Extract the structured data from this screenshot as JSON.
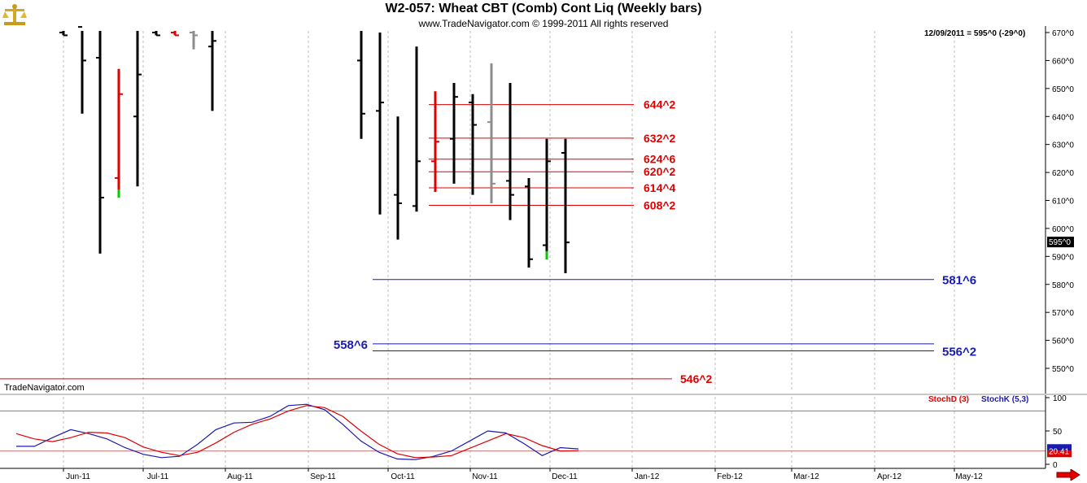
{
  "header": {
    "title": "W2-057:  Wheat CBT (Comb) Cont Liq  (Weekly bars)",
    "subtitle": "www.TradeNavigator.com © 1999-2011 All rights reserved",
    "last_bar_info": "12/09/2011 = 595^0 (-29^0)",
    "watermark": "TradeNavigator.com"
  },
  "icons": {
    "logo": "scales-logo-icon",
    "nav": "scroll-right-arrow-icon"
  },
  "colors": {
    "bar": "#000000",
    "pending_bar": "#8c8c8c",
    "red_bar": "#e00000",
    "green_tick": "#00cc00",
    "resistance": "#e00000",
    "support": "#1a1ab0",
    "stoch_d": "#e00000",
    "stoch_k": "#1a1ab0"
  },
  "chart_data": [
    {
      "type": "ohlc",
      "name": "price",
      "x_labels": [
        "Jun-11",
        "Jul-11",
        "Aug-11",
        "Sep-11",
        "Oct-11",
        "Nov-11",
        "Dec-11",
        "Jan-12",
        "Feb-12",
        "Mar-12",
        "Apr-12",
        "May-12"
      ],
      "y_ticks": [
        "550^0",
        "560^0",
        "570^0",
        "580^0",
        "590^0",
        "600^0",
        "610^0",
        "620^0",
        "630^0",
        "640^0",
        "650^0",
        "660^0",
        "670^0"
      ],
      "ylim": [
        540,
        672
      ],
      "last_price_label": "595^0",
      "bars": [
        {
          "date": "2011-05-27",
          "high": 672,
          "low": 669,
          "open": 670,
          "close": 669
        },
        {
          "date": "2011-06-03",
          "high": 675,
          "low": 641,
          "open": 672,
          "close": 660
        },
        {
          "date": "2011-06-10",
          "high": 675,
          "low": 591,
          "open": 661,
          "close": 611
        },
        {
          "date": "2011-06-17",
          "high": 657,
          "low": 611,
          "open": 618,
          "close": 648,
          "color": "red",
          "low_tick": "green"
        },
        {
          "date": "2011-06-24",
          "high": 672,
          "low": 615,
          "open": 640,
          "close": 655
        },
        {
          "date": "2011-07-01",
          "high": 672,
          "low": 669,
          "open": 670,
          "close": 669
        },
        {
          "date": "2011-07-08",
          "high": 672,
          "low": 669,
          "open": 670,
          "close": 669,
          "color": "red"
        },
        {
          "date": "2011-07-15",
          "high": 672,
          "low": 664,
          "open": 670,
          "close": 669,
          "color": "gray"
        },
        {
          "date": "2011-07-22",
          "high": 672,
          "low": 642,
          "open": 665,
          "close": 667
        },
        {
          "date": "2011-09-16",
          "high": 672,
          "low": 632,
          "open": 660,
          "close": 641
        },
        {
          "date": "2011-09-23",
          "high": 670,
          "low": 605,
          "open": 642,
          "close": 645
        },
        {
          "date": "2011-09-30",
          "high": 640,
          "low": 596,
          "open": 612,
          "close": 609
        },
        {
          "date": "2011-10-07",
          "high": 665,
          "low": 606,
          "open": 608,
          "close": 624
        },
        {
          "date": "2011-10-14",
          "high": 649,
          "low": 613,
          "open": 624,
          "close": 631,
          "color": "red"
        },
        {
          "date": "2011-10-21",
          "high": 652,
          "low": 616,
          "open": 632,
          "close": 647
        },
        {
          "date": "2011-10-28",
          "high": 648,
          "low": 612,
          "open": 645,
          "close": 637
        },
        {
          "date": "2011-11-04",
          "high": 659,
          "low": 609,
          "open": 638,
          "close": 616,
          "color": "gray"
        },
        {
          "date": "2011-11-11",
          "high": 652,
          "low": 603,
          "open": 617,
          "close": 612
        },
        {
          "date": "2011-11-18",
          "high": 618,
          "low": 586,
          "open": 615,
          "close": 589
        },
        {
          "date": "2011-11-25",
          "high": 632,
          "low": 589,
          "open": 594,
          "close": 624,
          "low_tick": "green"
        },
        {
          "date": "2011-12-02",
          "high": 632,
          "low": 584,
          "open": 627,
          "close": 595
        }
      ],
      "resistance_levels": [
        {
          "label": "644^2",
          "value": 644.25
        },
        {
          "label": "632^2",
          "value": 632.25
        },
        {
          "label": "624^6",
          "value": 624.75
        },
        {
          "label": "620^2",
          "value": 620.25
        },
        {
          "label": "614^4",
          "value": 614.5
        },
        {
          "label": "608^2",
          "value": 608.25
        },
        {
          "label": "546^2",
          "value": 546.25
        }
      ],
      "support_levels": [
        {
          "label": "581^6",
          "value": 581.75
        },
        {
          "label": "558^6",
          "value": 558.75
        },
        {
          "label": "556^2",
          "value": 556.25
        }
      ]
    },
    {
      "type": "line",
      "name": "stochastic",
      "y_ticks": [
        "100",
        "50",
        "0"
      ],
      "ylim": [
        0,
        100
      ],
      "reference_lines": [
        80,
        20
      ],
      "last_value_label": "20.41",
      "legend": [
        {
          "label": "StochD (3)",
          "color": "red"
        },
        {
          "label": "StochK (5,3)",
          "color": "blue"
        }
      ],
      "series": [
        {
          "name": "StochK (5,3)",
          "color": "blue",
          "values": [
            [
              0,
              27
            ],
            [
              1,
              27
            ],
            [
              2,
              40
            ],
            [
              3,
              52
            ],
            [
              4,
              46
            ],
            [
              5,
              38
            ],
            [
              6,
              25
            ],
            [
              7,
              15
            ],
            [
              8,
              10
            ],
            [
              9,
              12
            ],
            [
              10,
              30
            ],
            [
              11,
              52
            ],
            [
              12,
              62
            ],
            [
              13,
              63
            ],
            [
              14,
              72
            ],
            [
              15,
              88
            ],
            [
              16,
              90
            ],
            [
              17,
              82
            ],
            [
              18,
              60
            ],
            [
              19,
              35
            ],
            [
              20,
              18
            ],
            [
              21,
              8
            ],
            [
              22,
              7
            ],
            [
              23,
              12
            ],
            [
              24,
              20
            ],
            [
              25,
              35
            ],
            [
              26,
              50
            ],
            [
              27,
              47
            ],
            [
              28,
              31
            ],
            [
              29,
              13
            ],
            [
              30,
              25
            ],
            [
              31,
              23
            ]
          ]
        },
        {
          "name": "StochD (3)",
          "color": "red",
          "values": [
            [
              0,
              46
            ],
            [
              1,
              38
            ],
            [
              2,
              34
            ],
            [
              3,
              40
            ],
            [
              4,
              48
            ],
            [
              5,
              47
            ],
            [
              6,
              40
            ],
            [
              7,
              26
            ],
            [
              8,
              18
            ],
            [
              9,
              13
            ],
            [
              10,
              18
            ],
            [
              11,
              32
            ],
            [
              12,
              48
            ],
            [
              13,
              60
            ],
            [
              14,
              68
            ],
            [
              15,
              80
            ],
            [
              16,
              88
            ],
            [
              17,
              85
            ],
            [
              18,
              72
            ],
            [
              19,
              50
            ],
            [
              20,
              30
            ],
            [
              21,
              16
            ],
            [
              22,
              10
            ],
            [
              23,
              11
            ],
            [
              24,
              13
            ],
            [
              25,
              24
            ],
            [
              26,
              35
            ],
            [
              27,
              46
            ],
            [
              28,
              40
            ],
            [
              29,
              28
            ],
            [
              30,
              20
            ],
            [
              31,
              20.41
            ]
          ]
        }
      ]
    }
  ]
}
